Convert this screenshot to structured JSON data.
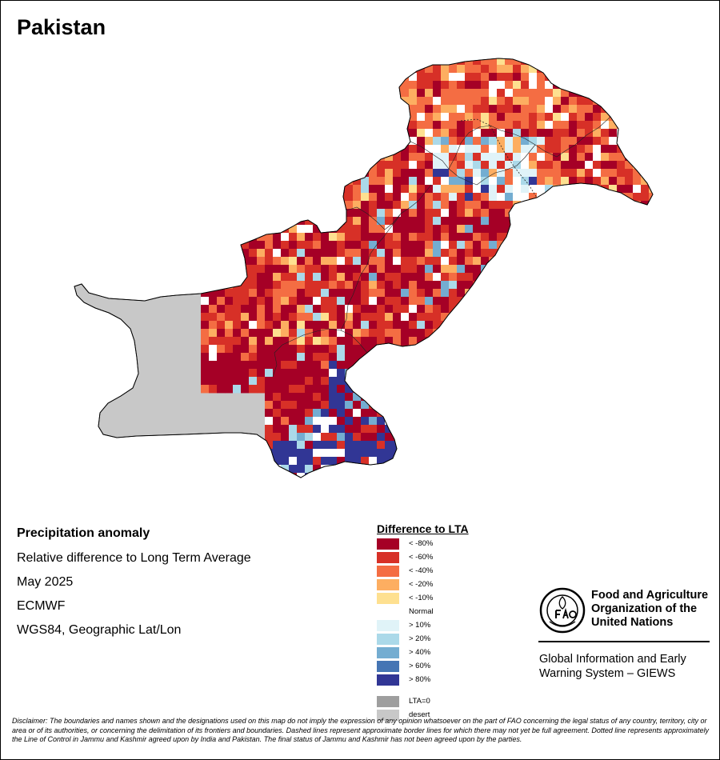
{
  "map": {
    "title": "Pakistan",
    "region": "Pakistan"
  },
  "metadata": {
    "title": "Precipitation anomaly",
    "subtitle": "Relative difference to Long Term Average",
    "period": "May 2025",
    "source": "ECMWF",
    "projection": "WGS84, Geographic Lat/Lon"
  },
  "legend": {
    "title": "Difference to LTA",
    "items": [
      {
        "label": "< -80%",
        "color": "#a50026"
      },
      {
        "label": "< -60%",
        "color": "#d73027"
      },
      {
        "label": "< -40%",
        "color": "#f46d43"
      },
      {
        "label": "< -20%",
        "color": "#fdae61"
      },
      {
        "label": "< -10%",
        "color": "#fee090"
      },
      {
        "label": "Normal",
        "color": "#ffffff"
      },
      {
        "label": "> 10%",
        "color": "#e0f3f8"
      },
      {
        "label": "> 20%",
        "color": "#abd9e9"
      },
      {
        "label": "> 40%",
        "color": "#74add1"
      },
      {
        "label": "> 60%",
        "color": "#4575b4"
      },
      {
        "label": "> 80%",
        "color": "#313695"
      },
      {
        "label": "LTA=0",
        "color": "#9e9e9e"
      },
      {
        "label": "desert",
        "color": "#c8c8c8"
      }
    ]
  },
  "organization": {
    "name_line1": "Food and Agriculture",
    "name_line2": "Organization of the",
    "name_line3": "United Nations",
    "system_line1": "Global Information and Early",
    "system_line2": "Warning System – GIEWS",
    "logo_icon": "fao-logo-icon"
  },
  "disclaimer": "Disclaimer: The boundaries and names shown and the designations used on this map do not imply the expression of any opinion whatsoever on the part of FAO concerning the legal status of any country, territory, city or area or of its authorities, or concerning the delimitation of its frontiers and boundaries. Dashed lines represent approximate border lines for which there may not yet be full agreement. Dotted line represents approximately the Line of Control in Jammu and Kashmir agreed upon by India and Pakistan. The final status of Jammu and Kashmir has not been agreed upon by the parties."
}
